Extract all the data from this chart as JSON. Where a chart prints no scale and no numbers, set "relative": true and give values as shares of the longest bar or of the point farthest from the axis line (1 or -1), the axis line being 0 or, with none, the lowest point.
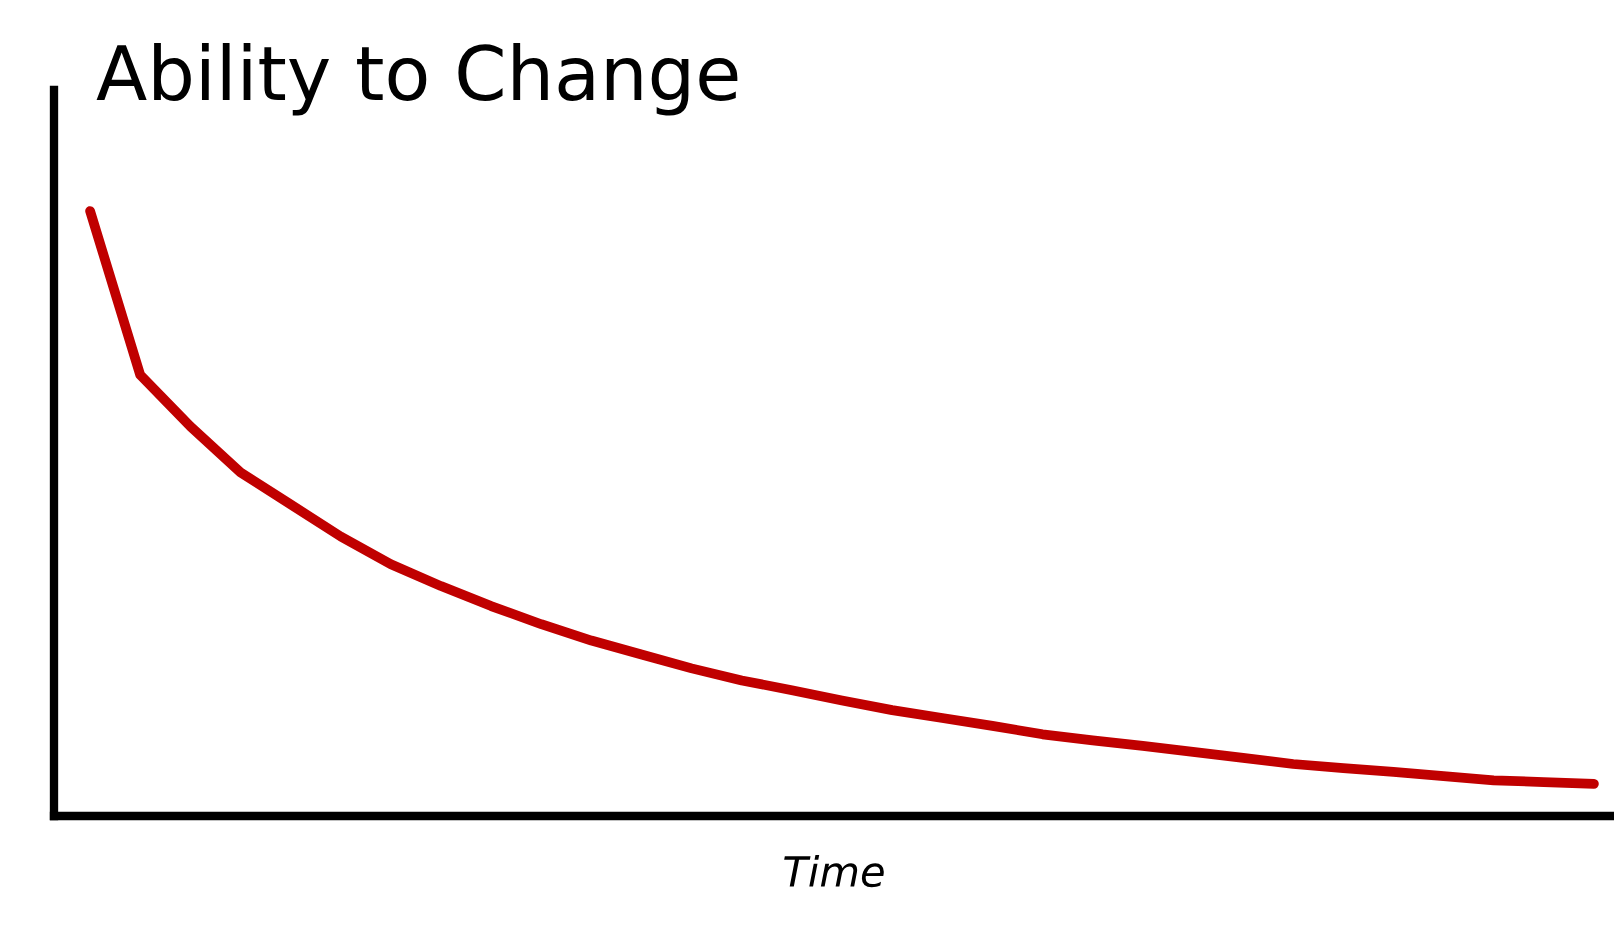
{
  "chart_data": {
    "type": "line",
    "title": "Ability to Change",
    "xlabel": "Time",
    "relative": true,
    "categories": [
      null,
      null,
      null,
      null,
      null,
      null,
      null,
      null,
      null,
      null,
      null,
      null,
      null,
      null,
      null,
      null,
      null,
      null,
      null,
      null,
      null,
      null,
      null,
      null,
      null,
      null,
      null,
      null,
      null,
      null,
      null
    ],
    "series": [
      {
        "color": "#c00000",
        "values": [
          1.0,
          0.729,
          0.644,
          0.568,
          0.515,
          0.462,
          0.416,
          0.38,
          0.347,
          0.317,
          0.29,
          0.267,
          0.244,
          0.224,
          0.208,
          0.191,
          0.175,
          0.162,
          0.149,
          0.135,
          0.125,
          0.116,
          0.106,
          0.096,
          0.086,
          0.079,
          0.073,
          0.066,
          0.059,
          0.056,
          0.053
        ]
      }
    ],
    "grid": false,
    "legend": false,
    "marker": "none",
    "line_style": "solid",
    "tick_labels": false
  }
}
